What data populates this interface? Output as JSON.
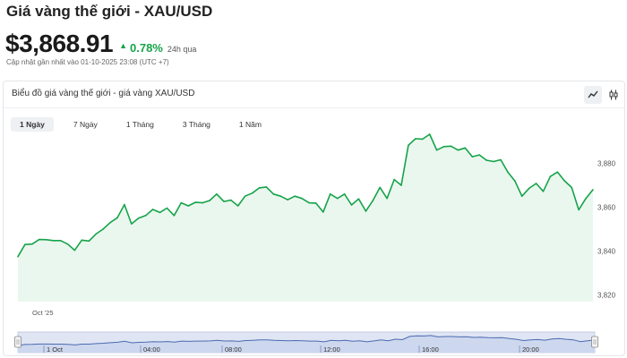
{
  "header": {
    "title": "Giá vàng thế giới - XAU/USD",
    "price": "$3,868.91",
    "change_arrow": "▲",
    "change_pct": "0.78%",
    "change_period": "24h qua",
    "updated": "Cập nhật gần nhất vào 01-10-2025 23:08 (UTC +7)"
  },
  "card": {
    "title": "Biểu đồ giá vàng thế giới - giá vàng XAU/USD",
    "tools": [
      "line-chart-icon",
      "candlestick-icon"
    ]
  },
  "range_tabs": [
    {
      "label": "1 Ngày",
      "active": true
    },
    {
      "label": "7 Ngày",
      "active": false
    },
    {
      "label": "1 Tháng",
      "active": false
    },
    {
      "label": "3 Tháng",
      "active": false
    },
    {
      "label": "1 Năm",
      "active": false
    }
  ],
  "colors": {
    "line": "#16a34a",
    "fill": "#eaf7ee",
    "up": "#16a34a",
    "navigator_bg": "#dfe5f3",
    "navigator_line": "#4b6bb0"
  },
  "chart_data": {
    "type": "area",
    "yticks": [
      3820,
      3840,
      3860,
      3880
    ],
    "ylim": [
      3817,
      3903
    ],
    "x_label": "Oct '25",
    "navigator_labels": [
      "1 Oct",
      "04:00",
      "08:00",
      "12:00",
      "16:00",
      "20:00"
    ],
    "values": [
      3837.5,
      3843.0,
      3843.2,
      3845.3,
      3845.2,
      3844.8,
      3844.8,
      3843.2,
      3840.4,
      3845.0,
      3844.6,
      3847.8,
      3850.0,
      3853.0,
      3855.2,
      3861.2,
      3852.4,
      3855.0,
      3856.2,
      3859.0,
      3857.6,
      3859.6,
      3856.2,
      3862.0,
      3860.6,
      3862.2,
      3862.0,
      3863.0,
      3866.0,
      3862.6,
      3863.2,
      3860.6,
      3865.0,
      3866.4,
      3868.8,
      3869.2,
      3866.0,
      3865.0,
      3863.4,
      3865.0,
      3864.0,
      3862.0,
      3861.8,
      3857.8,
      3866.0,
      3864.0,
      3866.0,
      3861.0,
      3863.8,
      3858.2,
      3863.0,
      3869.0,
      3864.0,
      3872.6,
      3870.0,
      3888.2,
      3891.2,
      3891.0,
      3893.2,
      3886.0,
      3887.6,
      3887.8,
      3886.0,
      3887.0,
      3883.0,
      3883.8,
      3881.4,
      3880.8,
      3881.6,
      3876.0,
      3872.0,
      3865.0,
      3868.6,
      3870.8,
      3867.2,
      3874.0,
      3876.0,
      3872.0,
      3869.0,
      3858.8,
      3864.0,
      3868.0
    ]
  }
}
